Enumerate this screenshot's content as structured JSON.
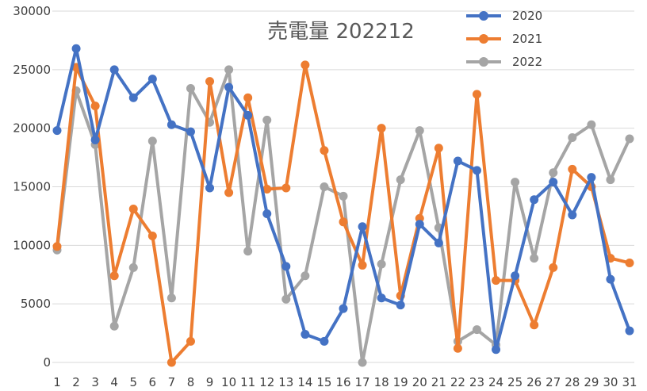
{
  "chart_data": {
    "type": "line",
    "title": "売電量 202212",
    "x": [
      1,
      2,
      3,
      4,
      5,
      6,
      7,
      8,
      9,
      10,
      11,
      12,
      13,
      14,
      15,
      16,
      17,
      18,
      19,
      20,
      21,
      22,
      23,
      24,
      25,
      26,
      27,
      28,
      29,
      30,
      31
    ],
    "x_tick_labels": [
      "1",
      "2",
      "3",
      "4",
      "5",
      "6",
      "7",
      "8",
      "9",
      "10",
      "11",
      "12",
      "13",
      "14",
      "15",
      "16",
      "17",
      "18",
      "19",
      "20",
      "21",
      "22",
      "23",
      "24",
      "25",
      "26",
      "27",
      "28",
      "29",
      "30",
      "31"
    ],
    "ylim": [
      0,
      30000
    ],
    "y_ticks": [
      0,
      5000,
      10000,
      15000,
      20000,
      25000,
      30000
    ],
    "y_tick_labels": [
      "0",
      "5000",
      "10000",
      "15000",
      "20000",
      "25000",
      "30000"
    ],
    "grid": "horizontal",
    "legend_position": "top-right",
    "series": [
      {
        "name": "2020",
        "color": "#4472C4",
        "values": [
          19800,
          26800,
          19000,
          25000,
          22600,
          24200,
          20300,
          19700,
          14900,
          23500,
          21100,
          12700,
          8200,
          2400,
          1800,
          4600,
          11600,
          5500,
          4900,
          11800,
          10200,
          17200,
          16400,
          1100,
          7400,
          13900,
          15400,
          12600,
          15800,
          7100,
          2700
        ]
      },
      {
        "name": "2021",
        "color": "#ED7D31",
        "values": [
          9900,
          25200,
          21900,
          7400,
          13100,
          10800,
          0,
          1800,
          24000,
          14500,
          22600,
          14800,
          14900,
          25400,
          18100,
          12000,
          8300,
          20000,
          5700,
          12300,
          18300,
          1200,
          22900,
          7000,
          7000,
          3200,
          8100,
          16500,
          15000,
          8900,
          8500
        ]
      },
      {
        "name": "2022",
        "color": "#A5A5A5",
        "values": [
          9600,
          23200,
          18600,
          3100,
          8100,
          18900,
          5500,
          23400,
          20500,
          25000,
          9500,
          20700,
          5400,
          7400,
          15000,
          14200,
          0,
          8400,
          15600,
          19800,
          11500,
          1800,
          2800,
          1500,
          15400,
          8900,
          16200,
          19200,
          20300,
          15600,
          19100
        ]
      }
    ]
  }
}
